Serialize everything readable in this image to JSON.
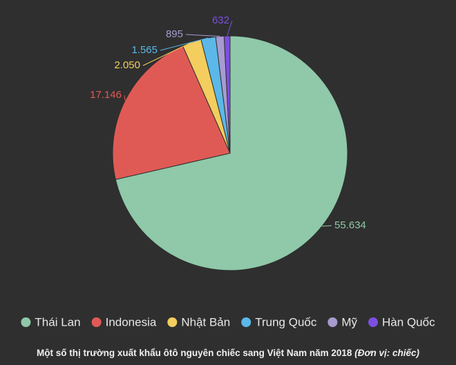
{
  "chart_data": {
    "type": "pie",
    "categories": [
      "Thái Lan",
      "Indonesia",
      "Nhật Bản",
      "Trung Quốc",
      "Mỹ",
      "Hàn Quốc"
    ],
    "values": [
      55634,
      17146,
      2050,
      1565,
      895,
      632
    ],
    "value_labels": [
      "55.634",
      "17.146",
      "2.050",
      "1.565",
      "895",
      "632"
    ],
    "colors": [
      "#8fc9a9",
      "#e05a55",
      "#f3cd5e",
      "#5bb8e8",
      "#a79bd0",
      "#7b4fe0"
    ],
    "caption": "Một số thị trường xuất khẩu ôtô nguyên chiếc sang Việt Nam năm 2018",
    "caption_unit": "(Đơn vị: chiếc)",
    "legend": "bottom"
  }
}
